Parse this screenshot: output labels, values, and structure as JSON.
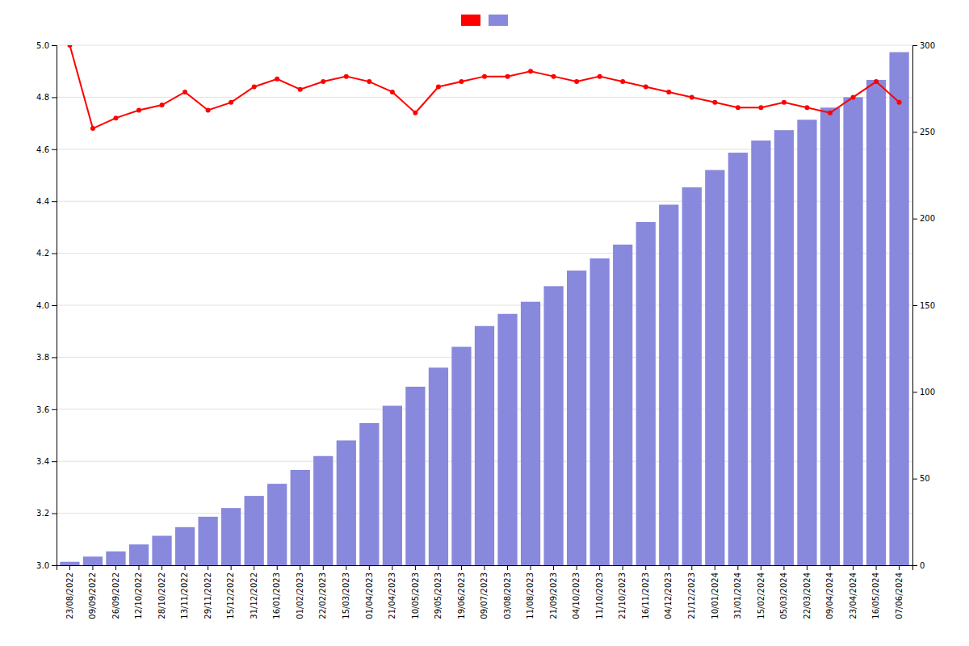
{
  "chart_data": {
    "type": "bar",
    "categories": [
      "23/08/2022",
      "09/09/2022",
      "26/09/2022",
      "12/10/2022",
      "28/10/2022",
      "13/11/2022",
      "29/11/2022",
      "15/12/2022",
      "31/12/2022",
      "16/01/2023",
      "01/02/2023",
      "22/02/2023",
      "15/03/2023",
      "01/04/2023",
      "21/04/2023",
      "10/05/2023",
      "29/05/2023",
      "19/06/2023",
      "09/07/2023",
      "03/08/2023",
      "11/08/2023",
      "21/09/2023",
      "04/10/2023",
      "11/10/2023",
      "21/10/2023",
      "16/11/2023",
      "04/12/2023",
      "21/12/2023",
      "10/01/2024",
      "31/01/2024",
      "15/02/2024",
      "05/03/2024",
      "22/03/2024",
      "09/04/2024",
      "23/04/2024",
      "16/05/2024",
      "07/06/2024"
    ],
    "series": [
      {
        "type": "line",
        "color": "#ff0000",
        "marker": "circle",
        "values": [
          5.0,
          4.68,
          4.72,
          4.75,
          4.77,
          4.82,
          4.75,
          4.78,
          4.84,
          4.87,
          4.83,
          4.86,
          4.88,
          4.86,
          4.82,
          4.74,
          4.84,
          4.86,
          4.88,
          4.88,
          4.9,
          4.88,
          4.86,
          4.88,
          4.86,
          4.84,
          4.82,
          4.8,
          4.78,
          4.76,
          4.76,
          4.78,
          4.76,
          4.74,
          4.8,
          4.86,
          4.78
        ]
      },
      {
        "type": "bar",
        "color": "#8888dd",
        "axis": "y2",
        "values": [
          2,
          5,
          8,
          12,
          17,
          22,
          28,
          33,
          40,
          47,
          55,
          63,
          72,
          82,
          92,
          103,
          114,
          126,
          138,
          145,
          152,
          161,
          170,
          177,
          185,
          198,
          208,
          218,
          228,
          238,
          245,
          251,
          257,
          264,
          270,
          280,
          296
        ]
      }
    ],
    "ylim": [
      3.0,
      5.0
    ],
    "yticks": [
      {
        "value": 3.0,
        "label": "3.0"
      },
      3.2,
      3.4,
      3.6,
      3.8,
      {
        "value": 4.0,
        "label": "4.0"
      },
      4.2,
      4.4,
      4.6,
      4.8,
      {
        "value": 5.0,
        "label": "5.0"
      }
    ],
    "y2lim": [
      0,
      300
    ],
    "y2ticks": [
      0,
      50,
      100,
      150,
      200,
      250,
      300
    ],
    "grid": true,
    "legend": "top"
  }
}
